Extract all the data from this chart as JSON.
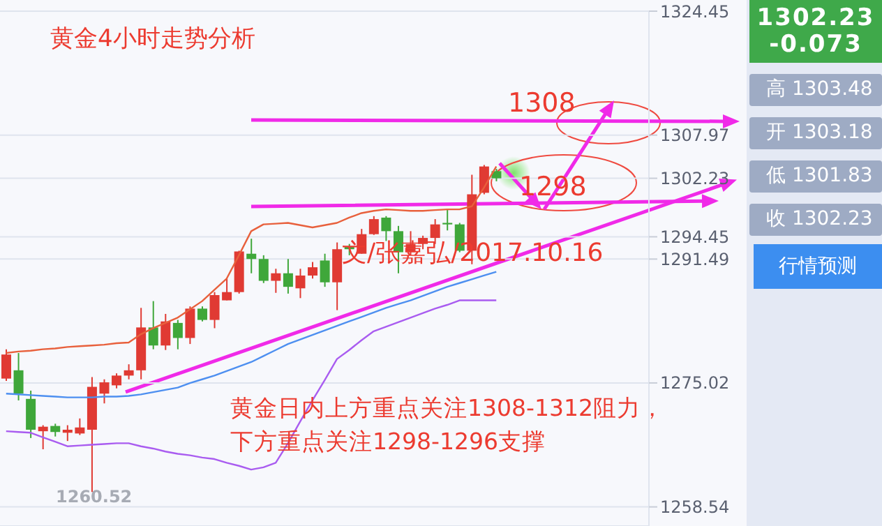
{
  "chart_data": {
    "type": "candlestick",
    "categories": [
      null,
      null,
      null,
      null,
      null,
      null,
      null,
      null,
      null,
      null,
      null,
      null,
      null,
      null,
      null,
      null,
      null,
      null,
      null,
      null,
      null,
      null,
      null,
      null,
      null,
      null,
      null,
      null,
      null,
      null,
      null,
      null,
      null,
      null,
      null,
      null,
      null,
      null,
      null,
      null,
      null
    ],
    "series": [
      {
        "type": "line",
        "color": "#e8603c",
        "values": [
          1279.0,
          1279.2,
          1279.3,
          1279.5,
          1279.6,
          1279.8,
          1279.9,
          1280.0,
          1280.1,
          1280.3,
          1280.4,
          1281.5,
          1282.3,
          1283.0,
          1283.7,
          1284.8,
          1285.9,
          1287.4,
          1288.9,
          1292.0,
          1295.2,
          1296.1,
          1296.2,
          1296.3,
          1296.0,
          1295.7,
          1296.0,
          1296.3,
          1297.0,
          1297.6,
          1297.9,
          1298.1,
          1298.0,
          1297.9,
          1297.9,
          1298.0,
          1298.1,
          1298.1,
          1298.5,
          1301.0,
          1303.8
        ]
      },
      {
        "type": "line",
        "color": "#4d8ff0",
        "values": [
          1273.6,
          1273.5,
          1273.4,
          1273.3,
          1273.2,
          1273.1,
          1273.1,
          1273.1,
          1273.2,
          1273.2,
          1273.3,
          1273.5,
          1273.8,
          1274.1,
          1274.4,
          1275.0,
          1275.5,
          1276.0,
          1276.6,
          1277.2,
          1277.8,
          1278.6,
          1279.4,
          1280.2,
          1280.8,
          1281.4,
          1282.0,
          1282.6,
          1283.2,
          1283.8,
          1284.4,
          1285.0,
          1285.5,
          1286.0,
          1286.6,
          1287.2,
          1287.8,
          1288.3,
          1288.8,
          1289.3,
          1289.8
        ]
      },
      {
        "type": "line",
        "color": "#a95cf0",
        "values": [
          1268.6,
          1268.5,
          1268.4,
          1267.8,
          1267.2,
          1266.6,
          1266.7,
          1266.8,
          1266.9,
          1267.0,
          1267.0,
          1266.6,
          1266.3,
          1265.9,
          1265.6,
          1265.4,
          1265.1,
          1264.9,
          1264.4,
          1264.0,
          1263.5,
          1263.8,
          1264.4,
          1267.0,
          1269.9,
          1272.7,
          1275.4,
          1278.2,
          1279.4,
          1280.7,
          1281.9,
          1282.5,
          1283.1,
          1283.7,
          1284.3,
          1284.9,
          1285.4,
          1286.0,
          1286.0,
          1286.0,
          1286.0
        ]
      },
      {
        "type": "candlestick",
        "ohlc": [
          [
            1275.6,
            1279.5,
            1275.3,
            1278.8
          ],
          [
            1276.7,
            1279.0,
            1272.7,
            1273.6
          ],
          [
            1272.9,
            1274.0,
            1267.7,
            1268.8
          ],
          [
            1268.6,
            1269.4,
            1266.2,
            1269.2
          ],
          [
            1269.3,
            1269.6,
            1267.9,
            1268.5
          ],
          [
            1268.4,
            1269.4,
            1267.3,
            1268.8
          ],
          [
            1268.3,
            1270.3,
            1268.1,
            1269.1
          ],
          [
            1268.8,
            1275.8,
            1260.52,
            1274.5
          ],
          [
            1273.6,
            1275.5,
            1272.3,
            1275.1
          ],
          [
            1274.7,
            1276.3,
            1274.3,
            1276.0
          ],
          [
            1276.0,
            1277.5,
            1275.5,
            1276.7
          ],
          [
            1276.7,
            1285.0,
            1275.5,
            1282.4
          ],
          [
            1282.4,
            1285.9,
            1279.5,
            1280.0
          ],
          [
            1280.0,
            1284.2,
            1279.4,
            1283.2
          ],
          [
            1283.0,
            1283.4,
            1279.5,
            1281.0
          ],
          [
            1281.0,
            1285.2,
            1280.2,
            1284.9
          ],
          [
            1284.9,
            1285.2,
            1283.2,
            1283.4
          ],
          [
            1283.4,
            1287.1,
            1282.3,
            1286.7
          ],
          [
            1286.0,
            1288.9,
            1286.0,
            1287.1
          ],
          [
            1287.1,
            1292.6,
            1286.9,
            1292.5
          ],
          [
            1292.2,
            1294.2,
            1289.6,
            1291.5
          ],
          [
            1291.5,
            1292.0,
            1288.3,
            1288.6
          ],
          [
            1288.6,
            1290.2,
            1287.0,
            1289.6
          ],
          [
            1289.6,
            1291.5,
            1286.9,
            1287.8
          ],
          [
            1287.6,
            1290.2,
            1286.3,
            1289.3
          ],
          [
            1289.3,
            1291.1,
            1288.9,
            1290.4
          ],
          [
            1291.3,
            1292.2,
            1287.8,
            1288.4
          ],
          [
            1288.4,
            1293.7,
            1284.7,
            1292.8
          ],
          [
            1293.2,
            1293.5,
            1292.0,
            1292.8
          ],
          [
            1292.2,
            1295.5,
            1292.2,
            1294.8
          ],
          [
            1294.8,
            1297.2,
            1294.7,
            1296.8
          ],
          [
            1297.0,
            1297.2,
            1293.9,
            1295.2
          ],
          [
            1295.2,
            1295.9,
            1289.6,
            1292.4
          ],
          [
            1292.4,
            1295.2,
            1292.0,
            1293.5
          ],
          [
            1293.5,
            1294.6,
            1292.8,
            1294.3
          ],
          [
            1294.3,
            1296.8,
            1293.5,
            1296.1
          ],
          [
            1296.3,
            1298.1,
            1295.3,
            1296.1
          ],
          [
            1296.1,
            1296.3,
            1292.4,
            1292.6
          ],
          [
            1292.6,
            1302.7,
            1290.8,
            1300.1
          ],
          [
            1300.3,
            1304.0,
            1300.1,
            1303.8
          ],
          [
            1303.18,
            1303.48,
            1301.83,
            1302.23
          ]
        ],
        "colors": [
          "#e03a33",
          "#3fa73a",
          "#3fa73a",
          "#e03a33",
          "#3fa73a",
          "#e03a33",
          "#e03a33",
          "#e03a33",
          "#e03a33",
          "#e03a33",
          "#e03a33",
          "#e03a33",
          "#3fa73a",
          "#e03a33",
          "#3fa73a",
          "#e03a33",
          "#3fa73a",
          "#e03a33",
          "#e03a33",
          "#e03a33",
          "#3fa73a",
          "#3fa73a",
          "#e03a33",
          "#3fa73a",
          "#e03a33",
          "#e03a33",
          "#3fa73a",
          "#e03a33",
          "#3fa73a",
          "#e03a33",
          "#e03a33",
          "#3fa73a",
          "#3fa73a",
          "#e03a33",
          "#e03a33",
          "#e03a33",
          "#3fa73a",
          "#3fa73a",
          "#e03a33",
          "#e03a33",
          "#3fa73a"
        ]
      }
    ],
    "ylim": [
      1256,
      1324.45
    ],
    "yticks": [
      1258.54,
      1275.02,
      1291.49,
      1294.45,
      1302.23,
      1307.97,
      1324.45
    ],
    "grid": "y",
    "tick_labels": "y",
    "annotations": [
      "黄金4小时走势分析",
      "1308",
      "1298",
      "文/张嘉弘/2017.10.16",
      "黄金日内上方重点关注1308-1312阻力，",
      "下方重点关注1298-1296支撑",
      "1260.52",
      "1302.23",
      "-0.073",
      "高 1303.48",
      "开 1303.18",
      "低 1301.83",
      "收 1302.23",
      "行情预测"
    ]
  }
}
